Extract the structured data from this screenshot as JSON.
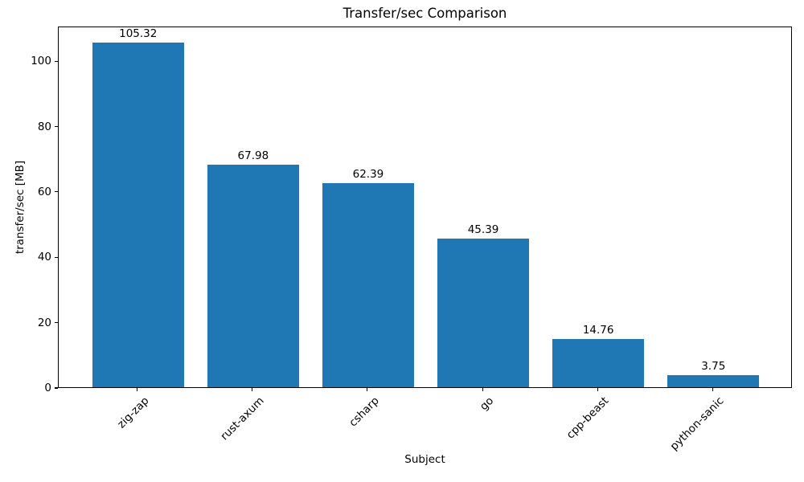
{
  "figure": {
    "background": "#ffffff"
  },
  "chart_data": {
    "type": "bar",
    "title": "Transfer/sec Comparison",
    "xlabel": "Subject",
    "ylabel": "transfer/sec [MB]",
    "categories": [
      "zig-zap",
      "rust-axum",
      "csharp",
      "go",
      "cpp-beast",
      "python-sanic"
    ],
    "values": [
      105.32,
      67.98,
      62.39,
      45.39,
      14.76,
      3.75
    ],
    "bar_labels": [
      "105.32",
      "67.98",
      "62.39",
      "45.39",
      "14.76",
      "3.75"
    ],
    "bar_color": "#1f77b4",
    "axis_color": "#000000",
    "text_color": "#000000",
    "ylim": [
      0,
      110.6
    ],
    "yticks": [
      0,
      20,
      40,
      60,
      80,
      100
    ],
    "xlim": [
      -0.69,
      5.69
    ],
    "bar_width_units": 0.8,
    "xtick_rotation_deg": 45,
    "grid": false,
    "legend": "none"
  }
}
